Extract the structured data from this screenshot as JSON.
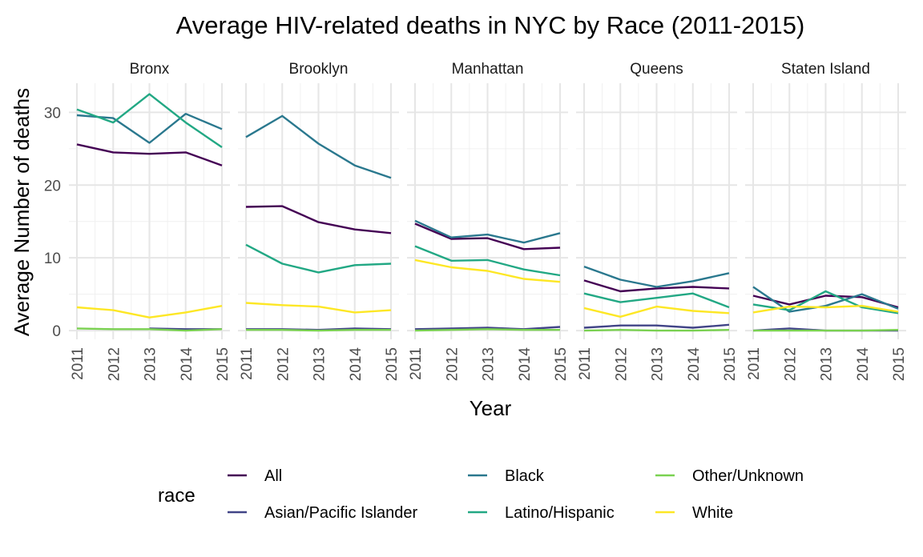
{
  "chart_data": {
    "type": "line",
    "title": "Average HIV-related deaths in NYC by Race (2011-2015)",
    "xlabel": "Year",
    "ylabel": "Average Number of deaths",
    "x": [
      2011,
      2012,
      2013,
      2014,
      2015
    ],
    "x_tick_labels": [
      "2011",
      "2012",
      "2013",
      "2014",
      "2015"
    ],
    "y_ticks": [
      0,
      10,
      20,
      30
    ],
    "ylim": [
      -1.2,
      34
    ],
    "grid": true,
    "legend": {
      "title": "race",
      "position": "bottom",
      "entries": [
        "All",
        "Asian/Pacific Islander",
        "Black",
        "Latino/Hispanic",
        "Other/Unknown",
        "White"
      ]
    },
    "colors": {
      "All": "#440154",
      "Asian/Pacific Islander": "#414487",
      "Black": "#2A788E",
      "Latino/Hispanic": "#22A884",
      "Other/Unknown": "#7AD151",
      "White": "#FDE725"
    },
    "facets": [
      {
        "name": "Bronx",
        "series": [
          {
            "name": "All",
            "values": [
              25.6,
              24.5,
              24.3,
              24.5,
              22.7
            ]
          },
          {
            "name": "Asian/Pacific Islander",
            "values": [
              null,
              null,
              0.3,
              0.2,
              0.2
            ]
          },
          {
            "name": "Black",
            "values": [
              29.6,
              29.2,
              25.8,
              29.8,
              27.7
            ]
          },
          {
            "name": "Latino/Hispanic",
            "values": [
              30.4,
              28.6,
              32.5,
              28.6,
              25.2
            ]
          },
          {
            "name": "Other/Unknown",
            "values": [
              0.3,
              0.2,
              0.2,
              0.0,
              0.2
            ]
          },
          {
            "name": "White",
            "values": [
              3.2,
              2.8,
              1.8,
              2.5,
              3.4
            ]
          }
        ]
      },
      {
        "name": "Brooklyn",
        "series": [
          {
            "name": "All",
            "values": [
              17.0,
              17.1,
              14.9,
              13.9,
              13.4
            ]
          },
          {
            "name": "Asian/Pacific Islander",
            "values": [
              0.2,
              0.2,
              0.1,
              0.3,
              0.2
            ]
          },
          {
            "name": "Black",
            "values": [
              26.6,
              29.5,
              25.7,
              22.7,
              21.0
            ]
          },
          {
            "name": "Latino/Hispanic",
            "values": [
              11.8,
              9.2,
              8.0,
              9.0,
              9.2
            ]
          },
          {
            "name": "Other/Unknown",
            "values": [
              0.1,
              0.1,
              0.0,
              0.1,
              0.1
            ]
          },
          {
            "name": "White",
            "values": [
              3.8,
              3.5,
              3.3,
              2.5,
              2.8
            ]
          }
        ]
      },
      {
        "name": "Manhattan",
        "series": [
          {
            "name": "All",
            "values": [
              14.7,
              12.6,
              12.7,
              11.2,
              11.4
            ]
          },
          {
            "name": "Asian/Pacific Islander",
            "values": [
              0.2,
              0.3,
              0.4,
              0.2,
              0.5
            ]
          },
          {
            "name": "Black",
            "values": [
              15.1,
              12.8,
              13.2,
              12.1,
              13.4
            ]
          },
          {
            "name": "Latino/Hispanic",
            "values": [
              11.6,
              9.6,
              9.7,
              8.4,
              7.6
            ]
          },
          {
            "name": "Other/Unknown",
            "values": [
              0.0,
              0.1,
              0.2,
              0.1,
              0.1
            ]
          },
          {
            "name": "White",
            "values": [
              9.7,
              8.7,
              8.2,
              7.1,
              6.7
            ]
          }
        ]
      },
      {
        "name": "Queens",
        "series": [
          {
            "name": "All",
            "values": [
              6.9,
              5.4,
              5.8,
              6.0,
              5.8
            ]
          },
          {
            "name": "Asian/Pacific Islander",
            "values": [
              0.4,
              0.7,
              0.7,
              0.4,
              0.8
            ]
          },
          {
            "name": "Black",
            "values": [
              8.8,
              7.0,
              6.0,
              6.8,
              7.9
            ]
          },
          {
            "name": "Latino/Hispanic",
            "values": [
              5.1,
              3.9,
              4.5,
              5.1,
              3.2
            ]
          },
          {
            "name": "Other/Unknown",
            "values": [
              0.0,
              0.1,
              0.0,
              0.0,
              0.1
            ]
          },
          {
            "name": "White",
            "values": [
              3.1,
              1.9,
              3.3,
              2.7,
              2.4
            ]
          }
        ]
      },
      {
        "name": "Staten Island",
        "series": [
          {
            "name": "All",
            "values": [
              4.8,
              3.6,
              4.8,
              4.6,
              3.2
            ]
          },
          {
            "name": "Asian/Pacific Islander",
            "values": [
              0.0,
              0.3,
              0.0,
              0.0,
              0.0
            ]
          },
          {
            "name": "Black",
            "values": [
              6.0,
              2.6,
              3.4,
              5.0,
              3.0
            ]
          },
          {
            "name": "Latino/Hispanic",
            "values": [
              3.6,
              2.8,
              5.4,
              3.2,
              2.4
            ]
          },
          {
            "name": "Other/Unknown",
            "values": [
              0.0,
              0.0,
              0.0,
              0.0,
              0.1
            ]
          },
          {
            "name": "White",
            "values": [
              2.5,
              3.3,
              3.2,
              3.4,
              2.6
            ]
          }
        ]
      }
    ]
  }
}
